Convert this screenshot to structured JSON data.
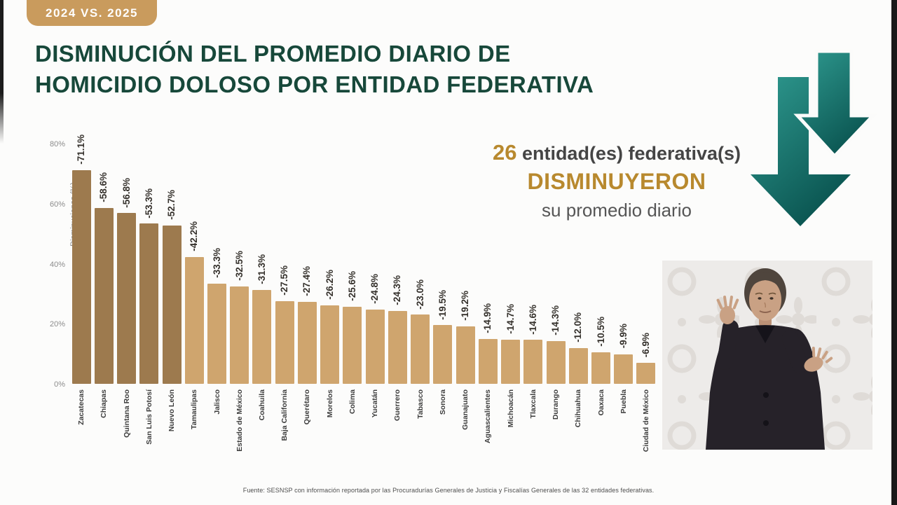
{
  "badge": {
    "label": "2024 VS. 2025"
  },
  "title": {
    "line1": "DISMINUCIÓN DEL PROMEDIO DIARIO DE",
    "line2": "HOMICIDIO DOLOSO POR ENTIDAD FEDERATIVA"
  },
  "callout": {
    "count": "26",
    "line1_rest": " entidad(es) federativa(s)",
    "line2": "DISMINUYERON",
    "line3": "su promedio diario"
  },
  "chart_data": {
    "type": "bar",
    "ylabel": "Disminuciones (%)",
    "ylim": [
      0,
      80
    ],
    "yticks": [
      {
        "value": 0,
        "label": "0%"
      },
      {
        "value": 20,
        "label": "20%"
      },
      {
        "value": 40,
        "label": "40%"
      },
      {
        "value": 60,
        "label": "60%"
      },
      {
        "value": 80,
        "label": "80%"
      }
    ],
    "categories": [
      "Zacatecas",
      "Chiapas",
      "Quintana Roo",
      "San Luis Potosí",
      "Nuevo León",
      "Tamaulipas",
      "Jalisco",
      "Estado de México",
      "Coahuila",
      "Baja California",
      "Querétaro",
      "Morelos",
      "Colima",
      "Yucatán",
      "Guerrero",
      "Tabasco",
      "Sonora",
      "Guanajuato",
      "Aguascalientes",
      "Michoacán",
      "Tlaxcala",
      "Durango",
      "Chihuahua",
      "Oaxaca",
      "Puebla",
      "Ciudad de México"
    ],
    "values": [
      -71.1,
      -58.6,
      -56.8,
      -53.3,
      -52.7,
      -42.2,
      -33.3,
      -32.5,
      -31.3,
      -27.5,
      -27.4,
      -26.2,
      -25.6,
      -24.8,
      -24.3,
      -23.0,
      -19.5,
      -19.2,
      -14.9,
      -14.7,
      -14.6,
      -14.3,
      -12.0,
      -10.5,
      -9.9,
      -6.9
    ],
    "labels": [
      "-71.1%",
      "-58.6%",
      "-56.8%",
      "-53.3%",
      "-52.7%",
      "-42.2%",
      "-33.3%",
      "-32.5%",
      "-31.3%",
      "-27.5%",
      "-27.4%",
      "-26.2%",
      "-25.6%",
      "-24.8%",
      "-24.3%",
      "-23.0%",
      "-19.5%",
      "-19.2%",
      "-14.9%",
      "-14.7%",
      "-14.6%",
      "-14.3%",
      "-12.0%",
      "-10.5%",
      "-9.9%",
      "-6.9%"
    ],
    "highlight_count": 5,
    "bar_color_highlight": "#9d7a4e",
    "bar_color_normal": "#cfa56e",
    "legend_position": "none",
    "grid": false
  },
  "footer": {
    "source": "Fuente: SESNSP con información reportada por las Procuradurías Generales de Justicia y Fiscalías Generales de las 32 entidades federativas."
  },
  "colors": {
    "title_green": "#17483a",
    "badge_tan": "#c99b5d",
    "gold": "#b8892e",
    "arrow_teal_light": "#2f9a90",
    "arrow_teal_dark": "#0a5450"
  }
}
